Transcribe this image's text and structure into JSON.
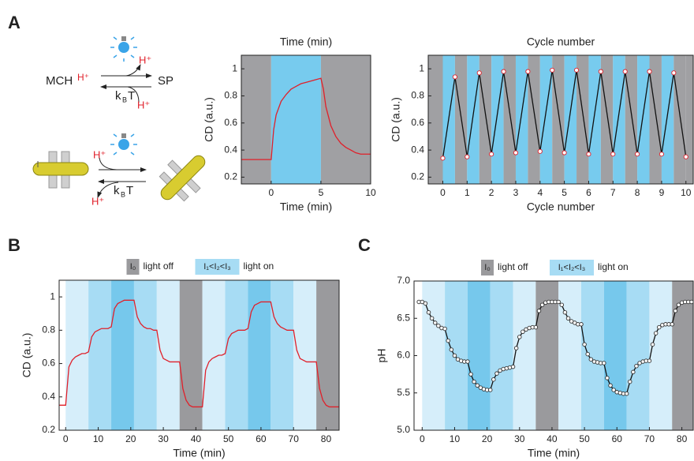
{
  "panels": [
    "A",
    "B",
    "C"
  ],
  "diagram": {
    "mc": "MCH",
    "mc_h": "H⁺",
    "sp": "SP",
    "h1": "H⁺",
    "h2": "H⁺",
    "h3": "H⁺",
    "h4": "H⁺",
    "k": "k",
    "b": "B",
    "t": "T"
  },
  "chart_data": [
    {
      "type": "line",
      "title": "Time (min)",
      "xlabel": "Time (min)",
      "ylabel": "CD (a.u.)",
      "xlim": [
        -3,
        10
      ],
      "xticks": [
        0,
        5,
        10
      ],
      "ylim": [
        0.15,
        1.1
      ],
      "yticks": [
        0.2,
        0.4,
        0.6,
        0.8,
        1.0
      ],
      "band_colors": [
        "#a0a0a3",
        "#77cbee"
      ],
      "bands": [
        [
          -3,
          0,
          0
        ],
        [
          0,
          5,
          1
        ],
        [
          5,
          10,
          0
        ]
      ],
      "markers": false,
      "x": [
        -3,
        -2,
        -1,
        0,
        0.25,
        0.5,
        1,
        1.5,
        2,
        2.5,
        3,
        3.5,
        4,
        4.5,
        5,
        5.25,
        5.5,
        6,
        6.5,
        7,
        7.5,
        8,
        8.5,
        9,
        9.5,
        10
      ],
      "series": [
        {
          "color": "#e0202a",
          "values": [
            0.33,
            0.33,
            0.33,
            0.33,
            0.55,
            0.66,
            0.76,
            0.81,
            0.85,
            0.87,
            0.89,
            0.9,
            0.91,
            0.92,
            0.93,
            0.85,
            0.72,
            0.58,
            0.5,
            0.45,
            0.42,
            0.4,
            0.38,
            0.37,
            0.37,
            0.37
          ]
        }
      ]
    },
    {
      "type": "line",
      "title": "Cycle number",
      "xlabel": "Cycle number",
      "ylabel": "CD (a.u.)",
      "xlim": [
        -0.6,
        10.3
      ],
      "xticks": [
        0,
        1,
        2,
        3,
        4,
        5,
        6,
        7,
        8,
        9,
        10
      ],
      "ylim": [
        0.15,
        1.1
      ],
      "yticks": [
        0.2,
        0.4,
        0.6,
        0.8,
        1.0
      ],
      "band_colors": [
        "#a0a0a3",
        "#77cbee"
      ],
      "bands": [
        [
          -0.6,
          0,
          0
        ],
        [
          0,
          0.5,
          1
        ],
        [
          0.5,
          1,
          0
        ],
        [
          1,
          1.5,
          1
        ],
        [
          1.5,
          2,
          0
        ],
        [
          2,
          2.5,
          1
        ],
        [
          2.5,
          3,
          0
        ],
        [
          3,
          3.5,
          1
        ],
        [
          3.5,
          4,
          0
        ],
        [
          4,
          4.5,
          1
        ],
        [
          4.5,
          5,
          0
        ],
        [
          5,
          5.5,
          1
        ],
        [
          5.5,
          6,
          0
        ],
        [
          6,
          6.5,
          1
        ],
        [
          6.5,
          7,
          0
        ],
        [
          7,
          7.5,
          1
        ],
        [
          7.5,
          8,
          0
        ],
        [
          8,
          8.5,
          1
        ],
        [
          8.5,
          9,
          0
        ],
        [
          9,
          9.5,
          1
        ],
        [
          9.5,
          10,
          0
        ],
        [
          10,
          10.3,
          0
        ]
      ],
      "markers": true,
      "marker_color": "#e0202a",
      "x": [
        0,
        0.5,
        1,
        1.5,
        2,
        2.5,
        3,
        3.5,
        4,
        4.5,
        5,
        5.5,
        6,
        6.5,
        7,
        7.5,
        8,
        8.5,
        9,
        9.5,
        10
      ],
      "series": [
        {
          "color": "#111111",
          "values": [
            0.34,
            0.94,
            0.35,
            0.97,
            0.37,
            0.98,
            0.38,
            0.98,
            0.39,
            0.99,
            0.38,
            0.99,
            0.37,
            0.98,
            0.37,
            0.98,
            0.37,
            0.98,
            0.37,
            0.97,
            0.35
          ]
        }
      ]
    },
    {
      "type": "line",
      "xlabel": "Time (min)",
      "ylabel": "CD (a.u.)",
      "xlim": [
        -2,
        84
      ],
      "xticks": [
        0,
        10,
        20,
        30,
        40,
        50,
        60,
        70,
        80
      ],
      "ylim": [
        0.2,
        1.1
      ],
      "yticks": [
        0.2,
        0.4,
        0.6,
        0.8,
        1.0
      ],
      "legend": [
        {
          "symbol": "I₀",
          "label": "light off",
          "color": "#9a9a9d"
        },
        {
          "symbol": "I₁<I₂<I₃",
          "label": "light on",
          "color": "#a7dcf4"
        }
      ],
      "band_colors": [
        "#9a9a9d",
        "#d6eefa",
        "#a7dcf4",
        "#76c8ec"
      ],
      "bands": [
        [
          0,
          7,
          1
        ],
        [
          7,
          14,
          2
        ],
        [
          14,
          21,
          3
        ],
        [
          21,
          28,
          2
        ],
        [
          28,
          35,
          1
        ],
        [
          35,
          42,
          0
        ],
        [
          42,
          49,
          1
        ],
        [
          49,
          56,
          2
        ],
        [
          56,
          63,
          3
        ],
        [
          63,
          70,
          2
        ],
        [
          70,
          77,
          1
        ],
        [
          77,
          84,
          0
        ]
      ],
      "markers": false,
      "x": [
        -2,
        -1,
        0,
        1,
        2,
        3,
        4,
        5,
        6,
        7,
        8,
        9,
        10,
        11,
        12,
        13,
        14,
        15,
        16,
        17,
        18,
        19,
        20,
        21,
        22,
        23,
        24,
        25,
        26,
        27,
        28,
        29,
        30,
        31,
        32,
        33,
        34,
        35,
        36,
        37,
        38,
        39,
        40,
        41,
        42,
        43,
        44,
        45,
        46,
        47,
        48,
        49,
        50,
        51,
        52,
        53,
        54,
        55,
        56,
        57,
        58,
        59,
        60,
        61,
        62,
        63,
        64,
        65,
        66,
        67,
        68,
        69,
        70,
        71,
        72,
        73,
        74,
        75,
        76,
        77,
        78,
        79,
        80,
        81,
        82,
        83,
        84
      ],
      "series": [
        {
          "color": "#e0202a",
          "values": [
            0.35,
            0.35,
            0.35,
            0.58,
            0.62,
            0.64,
            0.65,
            0.66,
            0.66,
            0.67,
            0.76,
            0.79,
            0.8,
            0.81,
            0.81,
            0.81,
            0.82,
            0.93,
            0.96,
            0.97,
            0.98,
            0.98,
            0.98,
            0.98,
            0.88,
            0.84,
            0.82,
            0.81,
            0.81,
            0.8,
            0.8,
            0.68,
            0.63,
            0.62,
            0.61,
            0.61,
            0.61,
            0.61,
            0.45,
            0.38,
            0.35,
            0.34,
            0.34,
            0.34,
            0.34,
            0.56,
            0.61,
            0.63,
            0.64,
            0.65,
            0.65,
            0.66,
            0.75,
            0.78,
            0.79,
            0.8,
            0.8,
            0.8,
            0.81,
            0.91,
            0.95,
            0.96,
            0.97,
            0.97,
            0.97,
            0.97,
            0.88,
            0.84,
            0.82,
            0.81,
            0.8,
            0.8,
            0.8,
            0.68,
            0.63,
            0.62,
            0.61,
            0.61,
            0.61,
            0.61,
            0.45,
            0.38,
            0.35,
            0.34,
            0.34,
            0.34,
            0.34
          ]
        }
      ]
    },
    {
      "type": "line",
      "xlabel": "Time (min)",
      "ylabel": "pH",
      "xlim": [
        -2.5,
        83.5
      ],
      "xticks": [
        0,
        10,
        20,
        30,
        40,
        50,
        60,
        70,
        80
      ],
      "ylim": [
        5,
        7
      ],
      "yticks": [
        {
          "value": 5,
          "label": "5.0"
        },
        5.5,
        {
          "value": 6,
          "label": "6.0"
        },
        6.5,
        {
          "value": 7,
          "label": "7.0"
        }
      ],
      "legend": [
        {
          "symbol": "I₀",
          "label": "light off",
          "color": "#9a9a9d"
        },
        {
          "symbol": "I₁<I₂<I₃",
          "label": "light on",
          "color": "#a7dcf4"
        }
      ],
      "band_colors": [
        "#9a9a9d",
        "#d6eefa",
        "#a7dcf4",
        "#76c8ec"
      ],
      "bands": [
        [
          0,
          7,
          1
        ],
        [
          7,
          14,
          2
        ],
        [
          14,
          21,
          3
        ],
        [
          21,
          28,
          2
        ],
        [
          28,
          35,
          1
        ],
        [
          35,
          42,
          0
        ],
        [
          42,
          49,
          1
        ],
        [
          49,
          56,
          2
        ],
        [
          56,
          63,
          3
        ],
        [
          63,
          70,
          2
        ],
        [
          70,
          77,
          1
        ],
        [
          77,
          83.5,
          0
        ]
      ],
      "markers": true,
      "marker_color": "#333333",
      "x": [
        -1,
        0,
        1,
        2,
        3,
        4,
        5,
        6,
        7,
        8,
        9,
        10,
        11,
        12,
        13,
        14,
        15,
        16,
        17,
        18,
        19,
        20,
        21,
        22,
        23,
        24,
        25,
        26,
        27,
        28,
        29,
        30,
        31,
        32,
        33,
        34,
        35,
        36,
        37,
        38,
        39,
        40,
        41,
        42,
        43,
        44,
        45,
        46,
        47,
        48,
        49,
        50,
        51,
        52,
        53,
        54,
        55,
        56,
        57,
        58,
        59,
        60,
        61,
        62,
        63,
        64,
        65,
        66,
        67,
        68,
        69,
        70,
        71,
        72,
        73,
        74,
        75,
        76,
        77,
        78,
        79,
        80,
        81,
        82,
        83
      ],
      "series": [
        {
          "color": "#111111",
          "values": [
            6.72,
            6.72,
            6.7,
            6.58,
            6.5,
            6.44,
            6.4,
            6.37,
            6.36,
            6.2,
            6.08,
            6.0,
            5.95,
            5.93,
            5.92,
            5.92,
            5.75,
            5.65,
            5.6,
            5.57,
            5.55,
            5.54,
            5.54,
            5.68,
            5.76,
            5.8,
            5.82,
            5.83,
            5.84,
            5.85,
            6.1,
            6.25,
            6.32,
            6.35,
            6.37,
            6.38,
            6.38,
            6.6,
            6.68,
            6.71,
            6.72,
            6.72,
            6.72,
            6.72,
            6.68,
            6.58,
            6.5,
            6.46,
            6.44,
            6.42,
            6.42,
            6.15,
            6.02,
            5.95,
            5.92,
            5.91,
            5.9,
            5.9,
            5.7,
            5.6,
            5.54,
            5.51,
            5.5,
            5.49,
            5.49,
            5.65,
            5.78,
            5.86,
            5.9,
            5.92,
            5.93,
            5.93,
            6.15,
            6.3,
            6.38,
            6.41,
            6.42,
            6.42,
            6.42,
            6.6,
            6.68,
            6.71,
            6.72,
            6.72,
            6.72
          ]
        }
      ]
    }
  ]
}
